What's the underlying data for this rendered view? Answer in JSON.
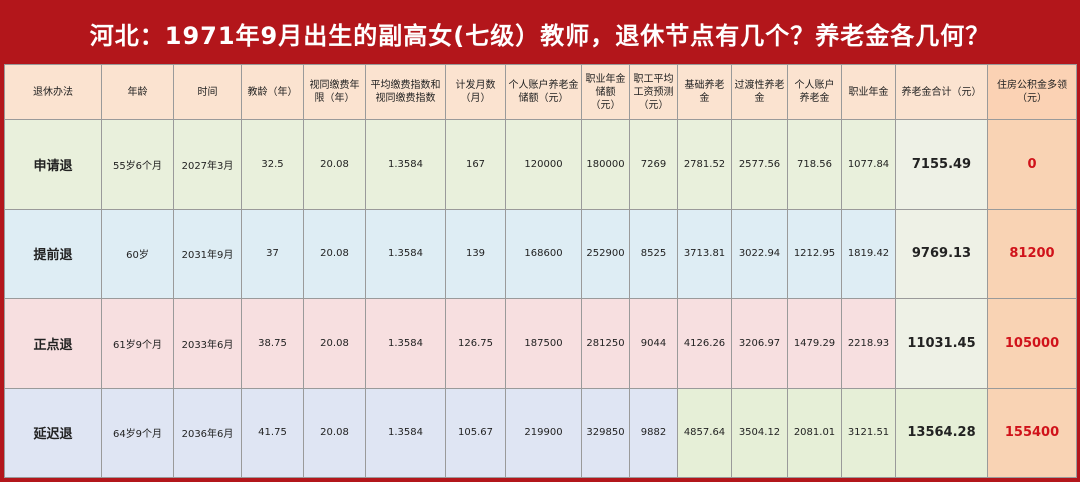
{
  "title": "河北：1971年9月出生的副高女(七级）教师，退休节点有几个？养老金各几何？",
  "headers": [
    "退休办法",
    "年龄",
    "时间",
    "教龄（年）",
    "视同缴费年限（年）",
    "平均缴费指数和视同缴费指数",
    "计发月数（月）",
    "个人账户养老金储额（元）",
    "职业年金储额（元）",
    "职工平均工资预测（元）",
    "基础养老金",
    "过渡性养老金",
    "个人账户养老金",
    "职业年金",
    "养老金合计（元）",
    "住房公积金多领（元）"
  ],
  "rows": [
    {
      "method": "申请退",
      "age": "55岁6个月",
      "time": "2027年3月",
      "teaching_years": "32.5",
      "deemed_years": "20.08",
      "index": "1.3584",
      "months": "167",
      "personal_account": "120000",
      "annuity_balance": "180000",
      "avg_wage": "7269",
      "basic": "2781.52",
      "transitional": "2577.56",
      "personal_pension": "718.56",
      "annuity": "1077.84",
      "total": "7155.49",
      "fund": "0"
    },
    {
      "method": "提前退",
      "age": "60岁",
      "time": "2031年9月",
      "teaching_years": "37",
      "deemed_years": "20.08",
      "index": "1.3584",
      "months": "139",
      "personal_account": "168600",
      "annuity_balance": "252900",
      "avg_wage": "8525",
      "basic": "3713.81",
      "transitional": "3022.94",
      "personal_pension": "1212.95",
      "annuity": "1819.42",
      "total": "9769.13",
      "fund": "81200"
    },
    {
      "method": "正点退",
      "age": "61岁9个月",
      "time": "2033年6月",
      "teaching_years": "38.75",
      "deemed_years": "20.08",
      "index": "1.3584",
      "months": "126.75",
      "personal_account": "187500",
      "annuity_balance": "281250",
      "avg_wage": "9044",
      "basic": "4126.26",
      "transitional": "3206.97",
      "personal_pension": "1479.29",
      "annuity": "2218.93",
      "total": "11031.45",
      "fund": "105000"
    },
    {
      "method": "延迟退",
      "age": "64岁9个月",
      "time": "2036年6月",
      "teaching_years": "41.75",
      "deemed_years": "20.08",
      "index": "1.3584",
      "months": "105.67",
      "personal_account": "219900",
      "annuity_balance": "329850",
      "avg_wage": "9882",
      "basic": "4857.64",
      "transitional": "3504.12",
      "personal_pension": "2081.01",
      "annuity": "3121.51",
      "total": "13564.28",
      "fund": "155400"
    }
  ],
  "colors": {
    "banner": "#b3161b",
    "fund_text": "#d0121a"
  }
}
